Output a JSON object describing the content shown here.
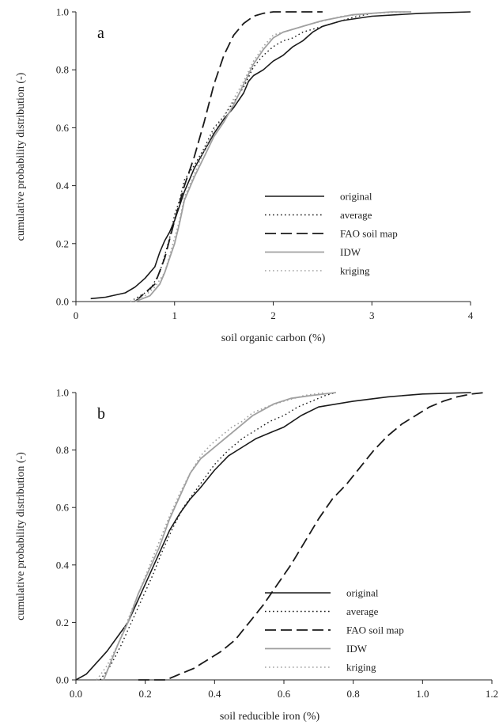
{
  "chart_data": [
    {
      "type": "line",
      "panel_label": "a",
      "xlabel": "soil organic carbon (%)",
      "ylabel": "cumulative probability distribution (-)",
      "xlim": [
        0,
        4
      ],
      "ylim": [
        0,
        1
      ],
      "x_ticks": [
        "0",
        "1",
        "2",
        "3",
        "4"
      ],
      "y_ticks": [
        "0.0",
        "0.2",
        "0.4",
        "0.6",
        "0.8",
        "1.0"
      ],
      "grid": false,
      "legend_position": "bottom-right",
      "series": [
        {
          "name": "original",
          "color": "#1a1a1a",
          "dash": "solid",
          "width": 1.6,
          "points": [
            [
              0.15,
              0.01
            ],
            [
              0.3,
              0.015
            ],
            [
              0.5,
              0.03
            ],
            [
              0.6,
              0.05
            ],
            [
              0.7,
              0.08
            ],
            [
              0.8,
              0.12
            ],
            [
              0.85,
              0.17
            ],
            [
              0.9,
              0.21
            ],
            [
              0.95,
              0.24
            ],
            [
              1.0,
              0.28
            ],
            [
              1.05,
              0.33
            ],
            [
              1.1,
              0.38
            ],
            [
              1.15,
              0.42
            ],
            [
              1.2,
              0.46
            ],
            [
              1.3,
              0.52
            ],
            [
              1.4,
              0.58
            ],
            [
              1.5,
              0.63
            ],
            [
              1.6,
              0.67
            ],
            [
              1.7,
              0.72
            ],
            [
              1.75,
              0.76
            ],
            [
              1.8,
              0.78
            ],
            [
              1.9,
              0.8
            ],
            [
              2.0,
              0.83
            ],
            [
              2.1,
              0.85
            ],
            [
              2.2,
              0.88
            ],
            [
              2.3,
              0.9
            ],
            [
              2.4,
              0.93
            ],
            [
              2.5,
              0.95
            ],
            [
              2.7,
              0.97
            ],
            [
              3.0,
              0.985
            ],
            [
              3.5,
              0.995
            ],
            [
              4.0,
              1.0
            ]
          ]
        },
        {
          "name": "average",
          "color": "#1a1a1a",
          "dash": "dotted",
          "width": 1.4,
          "points": [
            [
              0.55,
              0.0
            ],
            [
              0.65,
              0.02
            ],
            [
              0.75,
              0.04
            ],
            [
              0.8,
              0.07
            ],
            [
              0.85,
              0.1
            ],
            [
              0.9,
              0.16
            ],
            [
              0.95,
              0.22
            ],
            [
              1.0,
              0.3
            ],
            [
              1.05,
              0.35
            ],
            [
              1.1,
              0.42
            ],
            [
              1.2,
              0.47
            ],
            [
              1.3,
              0.53
            ],
            [
              1.4,
              0.6
            ],
            [
              1.5,
              0.64
            ],
            [
              1.6,
              0.69
            ],
            [
              1.7,
              0.74
            ],
            [
              1.8,
              0.81
            ],
            [
              1.9,
              0.85
            ],
            [
              2.0,
              0.88
            ],
            [
              2.1,
              0.9
            ],
            [
              2.2,
              0.91
            ],
            [
              2.3,
              0.93
            ],
            [
              2.5,
              0.95
            ],
            [
              2.8,
              0.98
            ],
            [
              3.0,
              0.995
            ]
          ]
        },
        {
          "name": "FAO soil map",
          "color": "#1a1a1a",
          "dash": "dashed",
          "width": 1.8,
          "points": [
            [
              0.6,
              0.0
            ],
            [
              0.8,
              0.06
            ],
            [
              0.9,
              0.15
            ],
            [
              1.0,
              0.28
            ],
            [
              1.1,
              0.4
            ],
            [
              1.2,
              0.5
            ],
            [
              1.3,
              0.62
            ],
            [
              1.4,
              0.75
            ],
            [
              1.5,
              0.85
            ],
            [
              1.6,
              0.92
            ],
            [
              1.7,
              0.96
            ],
            [
              1.8,
              0.985
            ],
            [
              1.9,
              0.995
            ],
            [
              2.0,
              1.0
            ],
            [
              2.5,
              1.0
            ]
          ]
        },
        {
          "name": "IDW",
          "color": "#a0a0a0",
          "dash": "solid",
          "width": 1.8,
          "points": [
            [
              0.6,
              0.0
            ],
            [
              0.75,
              0.02
            ],
            [
              0.85,
              0.06
            ],
            [
              0.9,
              0.1
            ],
            [
              0.95,
              0.15
            ],
            [
              1.0,
              0.2
            ],
            [
              1.05,
              0.27
            ],
            [
              1.1,
              0.35
            ],
            [
              1.2,
              0.43
            ],
            [
              1.3,
              0.5
            ],
            [
              1.4,
              0.57
            ],
            [
              1.5,
              0.62
            ],
            [
              1.6,
              0.68
            ],
            [
              1.7,
              0.75
            ],
            [
              1.8,
              0.82
            ],
            [
              1.9,
              0.87
            ],
            [
              2.0,
              0.91
            ],
            [
              2.1,
              0.93
            ],
            [
              2.3,
              0.95
            ],
            [
              2.5,
              0.97
            ],
            [
              2.8,
              0.99
            ],
            [
              3.2,
              1.0
            ],
            [
              3.4,
              1.0
            ]
          ]
        },
        {
          "name": "kriging",
          "color": "#a0a0a0",
          "dash": "dotted",
          "width": 1.6,
          "points": [
            [
              0.55,
              0.0
            ],
            [
              0.7,
              0.02
            ],
            [
              0.8,
              0.05
            ],
            [
              0.9,
              0.1
            ],
            [
              0.95,
              0.16
            ],
            [
              1.0,
              0.22
            ],
            [
              1.05,
              0.28
            ],
            [
              1.1,
              0.36
            ],
            [
              1.2,
              0.44
            ],
            [
              1.3,
              0.52
            ],
            [
              1.4,
              0.59
            ],
            [
              1.5,
              0.64
            ],
            [
              1.6,
              0.7
            ],
            [
              1.7,
              0.76
            ],
            [
              1.8,
              0.83
            ],
            [
              1.9,
              0.88
            ],
            [
              2.0,
              0.92
            ],
            [
              2.2,
              0.94
            ],
            [
              2.4,
              0.96
            ],
            [
              2.7,
              0.985
            ],
            [
              3.0,
              0.995
            ],
            [
              3.35,
              1.0
            ]
          ]
        }
      ]
    },
    {
      "type": "line",
      "panel_label": "b",
      "xlabel": "soil reducible iron (%)",
      "ylabel": "cumulative probability distribution (-)",
      "xlim": [
        0,
        1.2
      ],
      "ylim": [
        0,
        1
      ],
      "x_ticks": [
        "0.0",
        "0.2",
        "0.4",
        "0.6",
        "0.8",
        "1.0",
        "1.2"
      ],
      "y_ticks": [
        "0.0",
        "0.2",
        "0.4",
        "0.6",
        "0.8",
        "1.0"
      ],
      "grid": false,
      "legend_position": "bottom-right",
      "series": [
        {
          "name": "original",
          "color": "#1a1a1a",
          "dash": "solid",
          "width": 1.6,
          "points": [
            [
              0.0,
              0.0
            ],
            [
              0.03,
              0.02
            ],
            [
              0.06,
              0.06
            ],
            [
              0.09,
              0.1
            ],
            [
              0.12,
              0.15
            ],
            [
              0.15,
              0.2
            ],
            [
              0.18,
              0.28
            ],
            [
              0.21,
              0.36
            ],
            [
              0.24,
              0.44
            ],
            [
              0.27,
              0.52
            ],
            [
              0.3,
              0.58
            ],
            [
              0.33,
              0.63
            ],
            [
              0.36,
              0.67
            ],
            [
              0.4,
              0.73
            ],
            [
              0.44,
              0.78
            ],
            [
              0.48,
              0.81
            ],
            [
              0.52,
              0.84
            ],
            [
              0.56,
              0.86
            ],
            [
              0.6,
              0.88
            ],
            [
              0.65,
              0.92
            ],
            [
              0.7,
              0.95
            ],
            [
              0.8,
              0.97
            ],
            [
              0.9,
              0.985
            ],
            [
              1.0,
              0.995
            ],
            [
              1.14,
              1.0
            ]
          ]
        },
        {
          "name": "average",
          "color": "#1a1a1a",
          "dash": "dotted",
          "width": 1.4,
          "points": [
            [
              0.07,
              0.0
            ],
            [
              0.1,
              0.05
            ],
            [
              0.13,
              0.12
            ],
            [
              0.16,
              0.2
            ],
            [
              0.19,
              0.28
            ],
            [
              0.22,
              0.36
            ],
            [
              0.25,
              0.45
            ],
            [
              0.28,
              0.53
            ],
            [
              0.31,
              0.6
            ],
            [
              0.34,
              0.65
            ],
            [
              0.37,
              0.7
            ],
            [
              0.4,
              0.75
            ],
            [
              0.44,
              0.8
            ],
            [
              0.48,
              0.84
            ],
            [
              0.52,
              0.87
            ],
            [
              0.56,
              0.9
            ],
            [
              0.6,
              0.92
            ],
            [
              0.64,
              0.95
            ],
            [
              0.68,
              0.97
            ],
            [
              0.72,
              0.99
            ],
            [
              0.75,
              1.0
            ]
          ]
        },
        {
          "name": "FAO soil map",
          "color": "#1a1a1a",
          "dash": "dashed",
          "width": 1.8,
          "points": [
            [
              0.18,
              0.0
            ],
            [
              0.26,
              0.0
            ],
            [
              0.3,
              0.02
            ],
            [
              0.34,
              0.04
            ],
            [
              0.38,
              0.07
            ],
            [
              0.42,
              0.1
            ],
            [
              0.46,
              0.14
            ],
            [
              0.5,
              0.2
            ],
            [
              0.54,
              0.26
            ],
            [
              0.58,
              0.33
            ],
            [
              0.62,
              0.4
            ],
            [
              0.66,
              0.48
            ],
            [
              0.7,
              0.56
            ],
            [
              0.74,
              0.63
            ],
            [
              0.78,
              0.68
            ],
            [
              0.82,
              0.74
            ],
            [
              0.86,
              0.8
            ],
            [
              0.9,
              0.85
            ],
            [
              0.94,
              0.89
            ],
            [
              0.98,
              0.92
            ],
            [
              1.02,
              0.95
            ],
            [
              1.06,
              0.97
            ],
            [
              1.1,
              0.985
            ],
            [
              1.14,
              0.995
            ],
            [
              1.18,
              1.0
            ]
          ]
        },
        {
          "name": "IDW",
          "color": "#a0a0a0",
          "dash": "solid",
          "width": 1.8,
          "points": [
            [
              0.08,
              0.0
            ],
            [
              0.1,
              0.06
            ],
            [
              0.12,
              0.12
            ],
            [
              0.15,
              0.2
            ],
            [
              0.18,
              0.3
            ],
            [
              0.21,
              0.38
            ],
            [
              0.24,
              0.46
            ],
            [
              0.27,
              0.56
            ],
            [
              0.3,
              0.64
            ],
            [
              0.33,
              0.72
            ],
            [
              0.36,
              0.77
            ],
            [
              0.39,
              0.8
            ],
            [
              0.42,
              0.83
            ],
            [
              0.45,
              0.86
            ],
            [
              0.48,
              0.89
            ],
            [
              0.51,
              0.92
            ],
            [
              0.54,
              0.94
            ],
            [
              0.57,
              0.96
            ],
            [
              0.62,
              0.98
            ],
            [
              0.68,
              0.99
            ],
            [
              0.75,
              1.0
            ]
          ]
        },
        {
          "name": "kriging",
          "color": "#a0a0a0",
          "dash": "dotted",
          "width": 1.6,
          "points": [
            [
              0.06,
              0.0
            ],
            [
              0.09,
              0.05
            ],
            [
              0.12,
              0.12
            ],
            [
              0.15,
              0.21
            ],
            [
              0.18,
              0.3
            ],
            [
              0.21,
              0.39
            ],
            [
              0.24,
              0.48
            ],
            [
              0.27,
              0.57
            ],
            [
              0.3,
              0.65
            ],
            [
              0.33,
              0.72
            ],
            [
              0.36,
              0.78
            ],
            [
              0.39,
              0.82
            ],
            [
              0.42,
              0.85
            ],
            [
              0.45,
              0.88
            ],
            [
              0.48,
              0.9
            ],
            [
              0.51,
              0.93
            ],
            [
              0.55,
              0.95
            ],
            [
              0.6,
              0.97
            ],
            [
              0.66,
              0.99
            ],
            [
              0.72,
              1.0
            ]
          ]
        }
      ]
    }
  ]
}
